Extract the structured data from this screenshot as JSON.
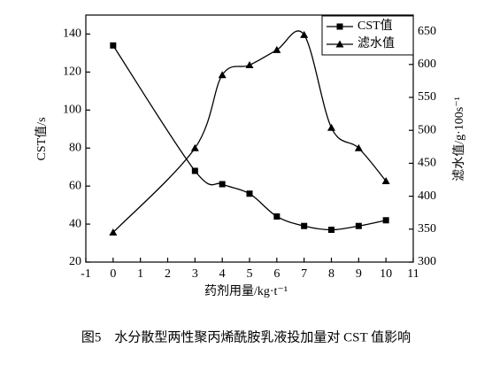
{
  "chart_data": {
    "type": "line",
    "caption": "图5　水分散型两性聚丙烯酰胺乳液投加量对 CST 值影响",
    "xlabel": "药剂用量/kg·t⁻¹",
    "ylabel": "CST值/s",
    "y2label": "滤水值/g·100s⁻¹",
    "x": [
      0,
      3,
      4,
      5,
      6,
      7,
      8,
      9,
      10
    ],
    "series": [
      {
        "name": "CST值",
        "color": "#000000",
        "marker": "square",
        "values": [
          134,
          68,
          61,
          56,
          44,
          39,
          37,
          39,
          42
        ]
      },
      {
        "name": "滤水值",
        "color": "#000000",
        "marker": "triangle",
        "axis": "y2",
        "values": [
          345,
          473,
          584,
          599,
          622,
          645,
          504,
          473,
          423
        ]
      }
    ],
    "xlim": [
      -1,
      11
    ],
    "xticks": [
      -1,
      0,
      1,
      2,
      3,
      4,
      5,
      6,
      7,
      8,
      9,
      10,
      11
    ],
    "ylim": [
      20,
      150
    ],
    "yticks": [
      20,
      40,
      60,
      80,
      100,
      120,
      140
    ],
    "y2lim": [
      300,
      675
    ],
    "y2ticks": [
      300,
      350,
      400,
      450,
      500,
      550,
      600,
      650
    ],
    "legend": "upper right"
  }
}
